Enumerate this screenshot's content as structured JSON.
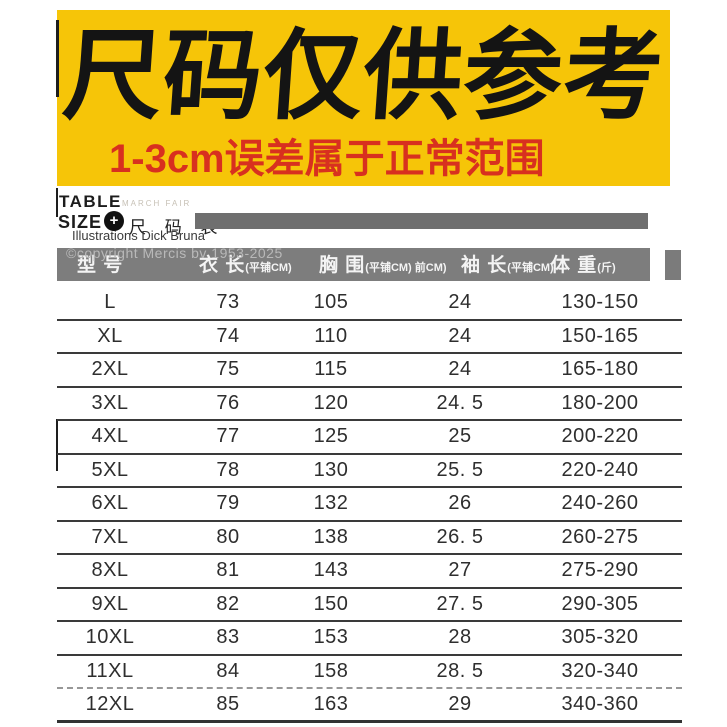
{
  "banner": {
    "title": "尺码仅供参考",
    "subtitle": "1-3cm误差属于正常范围",
    "bg_color": "#F6C508",
    "title_color": "#141414",
    "subtitle_color": "#D8301F"
  },
  "brand": {
    "table_word": "TABLE",
    "march_fair": "MARCH FAIR",
    "size_word": "SIZE",
    "plus_icon": "+",
    "size_table_cn": "尺 码 表",
    "illustrations": "Illustrations Dick Bruna",
    "copyright": "©copyright Mercis bv 1953-2025"
  },
  "table": {
    "header": [
      {
        "main": "型 号",
        "sub": ""
      },
      {
        "main": "衣 长",
        "sub": "(平铺CM)"
      },
      {
        "main": "胸 围",
        "sub": "(平铺CM) 前CM)"
      },
      {
        "main": "袖 长",
        "sub": "(平铺CM)"
      },
      {
        "main": "体 重",
        "sub": "(斤)"
      }
    ],
    "rows": [
      [
        "L",
        "73",
        "105",
        "24",
        "130-150"
      ],
      [
        "XL",
        "74",
        "110",
        "24",
        "150-165"
      ],
      [
        "2XL",
        "75",
        "115",
        "24",
        "165-180"
      ],
      [
        "3XL",
        "76",
        "120",
        "24. 5",
        "180-200"
      ],
      [
        "4XL",
        "77",
        "125",
        "25",
        "200-220"
      ],
      [
        "5XL",
        "78",
        "130",
        "25. 5",
        "220-240"
      ],
      [
        "6XL",
        "79",
        "132",
        "26",
        "240-260"
      ],
      [
        "7XL",
        "80",
        "138",
        "26. 5",
        "260-275"
      ],
      [
        "8XL",
        "81",
        "143",
        "27",
        "275-290"
      ],
      [
        "9XL",
        "82",
        "150",
        "27. 5",
        "290-305"
      ],
      [
        "10XL",
        "83",
        "153",
        "28",
        "305-320"
      ],
      [
        "11XL",
        "84",
        "158",
        "28. 5",
        "320-340"
      ],
      [
        "12XL",
        "85",
        "163",
        "29",
        "340-360"
      ]
    ]
  },
  "chart_data": {
    "type": "table",
    "title": "尺码表 (Size chart, 尺码仅供参考 / 1-3cm误差属于正常范围)",
    "columns": [
      "型号",
      "衣长(平铺CM)",
      "胸围(平铺CM) 前CM)",
      "袖长(平铺CM)",
      "体重(斤)"
    ],
    "rows": [
      {
        "model": "L",
        "length_cm": 73,
        "chest_cm": 105,
        "sleeve_cm": 24,
        "weight_jin": "130-150"
      },
      {
        "model": "XL",
        "length_cm": 74,
        "chest_cm": 110,
        "sleeve_cm": 24,
        "weight_jin": "150-165"
      },
      {
        "model": "2XL",
        "length_cm": 75,
        "chest_cm": 115,
        "sleeve_cm": 24,
        "weight_jin": "165-180"
      },
      {
        "model": "3XL",
        "length_cm": 76,
        "chest_cm": 120,
        "sleeve_cm": 24.5,
        "weight_jin": "180-200"
      },
      {
        "model": "4XL",
        "length_cm": 77,
        "chest_cm": 125,
        "sleeve_cm": 25,
        "weight_jin": "200-220"
      },
      {
        "model": "5XL",
        "length_cm": 78,
        "chest_cm": 130,
        "sleeve_cm": 25.5,
        "weight_jin": "220-240"
      },
      {
        "model": "6XL",
        "length_cm": 79,
        "chest_cm": 132,
        "sleeve_cm": 26,
        "weight_jin": "240-260"
      },
      {
        "model": "7XL",
        "length_cm": 80,
        "chest_cm": 138,
        "sleeve_cm": 26.5,
        "weight_jin": "260-275"
      },
      {
        "model": "8XL",
        "length_cm": 81,
        "chest_cm": 143,
        "sleeve_cm": 27,
        "weight_jin": "275-290"
      },
      {
        "model": "9XL",
        "length_cm": 82,
        "chest_cm": 150,
        "sleeve_cm": 27.5,
        "weight_jin": "290-305"
      },
      {
        "model": "10XL",
        "length_cm": 83,
        "chest_cm": 153,
        "sleeve_cm": 28,
        "weight_jin": "305-320"
      },
      {
        "model": "11XL",
        "length_cm": 84,
        "chest_cm": 158,
        "sleeve_cm": 28.5,
        "weight_jin": "320-340"
      },
      {
        "model": "12XL",
        "length_cm": 85,
        "chest_cm": 163,
        "sleeve_cm": 29,
        "weight_jin": "340-360"
      }
    ]
  },
  "colors": {
    "banner_yellow": "#F6C508",
    "subtitle_red": "#D8301F",
    "header_gray": "#7D7D7D",
    "bar_gray": "#6F6F6F"
  }
}
